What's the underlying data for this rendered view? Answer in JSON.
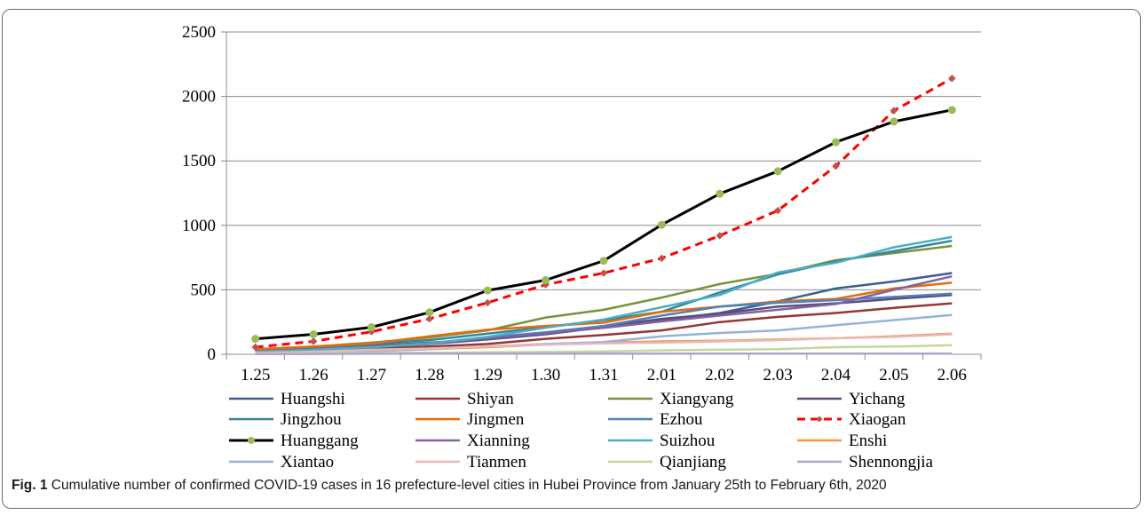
{
  "chart_data": {
    "type": "line",
    "title": "",
    "xlabel": "",
    "ylabel": "",
    "ylim": [
      0,
      2500
    ],
    "yticks": [
      0,
      500,
      1000,
      1500,
      2000,
      2500
    ],
    "grid": "horizontal",
    "legend_position": "bottom",
    "categories": [
      "1.25",
      "1.26",
      "1.27",
      "1.28",
      "1.29",
      "1.30",
      "1.31",
      "2.01",
      "2.02",
      "2.03",
      "2.04",
      "2.05",
      "2.06"
    ],
    "series": [
      {
        "name": "Huangshi",
        "color": "#3a5f8f",
        "style": "solid",
        "marker": "none",
        "values": [
          30,
          45,
          60,
          80,
          115,
          155,
          210,
          265,
          320,
          410,
          510,
          565,
          630
        ]
      },
      {
        "name": "Shiyan",
        "color": "#943634",
        "style": "solid",
        "marker": "none",
        "values": [
          15,
          25,
          45,
          60,
          80,
          120,
          150,
          185,
          250,
          290,
          320,
          360,
          395
        ]
      },
      {
        "name": "Xiangyang",
        "color": "#77933c",
        "style": "solid",
        "marker": "none",
        "values": [
          30,
          60,
          90,
          130,
          185,
          285,
          345,
          440,
          545,
          625,
          730,
          785,
          840
        ]
      },
      {
        "name": "Yichang",
        "color": "#604a7b",
        "style": "solid",
        "marker": "none",
        "values": [
          20,
          40,
          65,
          90,
          120,
          165,
          215,
          275,
          315,
          370,
          395,
          430,
          460
        ]
      },
      {
        "name": "Jingzhou",
        "color": "#31859c",
        "style": "solid",
        "marker": "none",
        "values": [
          35,
          55,
          80,
          110,
          160,
          210,
          265,
          330,
          480,
          620,
          720,
          800,
          880
        ]
      },
      {
        "name": "Jingmen",
        "color": "#e46c0a",
        "style": "solid",
        "marker": "none",
        "values": [
          40,
          60,
          85,
          140,
          190,
          220,
          245,
          330,
          370,
          410,
          430,
          510,
          555
        ]
      },
      {
        "name": "Ezhou",
        "color": "#4f81bd",
        "style": "solid",
        "marker": "none",
        "values": [
          20,
          35,
          55,
          80,
          130,
          170,
          220,
          300,
          370,
          400,
          420,
          445,
          470
        ]
      },
      {
        "name": "Xiaogan",
        "color": "#ff0000",
        "style": "dash",
        "marker": "diamond",
        "values": [
          55,
          100,
          175,
          275,
          400,
          540,
          630,
          745,
          920,
          1115,
          1460,
          1890,
          2140
        ]
      },
      {
        "name": "Huanggang",
        "color": "#000000",
        "style": "solid",
        "marker": "circle",
        "values": [
          120,
          155,
          210,
          325,
          495,
          575,
          725,
          1005,
          1245,
          1420,
          1645,
          1805,
          1895
        ]
      },
      {
        "name": "Xianning",
        "color": "#8064a2",
        "style": "solid",
        "marker": "none",
        "values": [
          25,
          40,
          60,
          85,
          125,
          165,
          205,
          255,
          300,
          345,
          390,
          500,
          605
        ]
      },
      {
        "name": "Suizhou",
        "color": "#4bacc6",
        "style": "solid",
        "marker": "none",
        "values": [
          20,
          35,
          55,
          85,
          135,
          205,
          270,
          365,
          460,
          635,
          710,
          830,
          910
        ]
      },
      {
        "name": "Enshi",
        "color": "#f79646",
        "style": "solid",
        "marker": "none",
        "values": [
          10,
          15,
          25,
          40,
          55,
          75,
          90,
          100,
          105,
          115,
          125,
          140,
          160
        ]
      },
      {
        "name": "Xiantao",
        "color": "#95b3d7",
        "style": "solid",
        "marker": "none",
        "values": [
          10,
          15,
          25,
          40,
          60,
          80,
          95,
          140,
          165,
          185,
          225,
          265,
          305
        ]
      },
      {
        "name": "Tianmen",
        "color": "#e6b9b8",
        "style": "solid",
        "marker": "none",
        "values": [
          10,
          20,
          35,
          45,
          60,
          75,
          85,
          90,
          100,
          110,
          125,
          135,
          155
        ]
      },
      {
        "name": "Qianjiang",
        "color": "#c3d69b",
        "style": "solid",
        "marker": "none",
        "values": [
          5,
          8,
          10,
          12,
          15,
          18,
          22,
          30,
          35,
          40,
          55,
          60,
          70
        ]
      },
      {
        "name": "Shennongjia",
        "color": "#b3a2c7",
        "style": "solid",
        "marker": "none",
        "values": [
          2,
          3,
          4,
          5,
          5,
          5,
          5,
          5,
          5,
          5,
          5,
          5,
          5
        ]
      }
    ]
  },
  "caption": {
    "label": "Fig. 1",
    "text": " Cumulative number of confirmed COVID-19 cases in 16 prefecture-level cities in Hubei Province from January 25th to February 6th, 2020"
  }
}
